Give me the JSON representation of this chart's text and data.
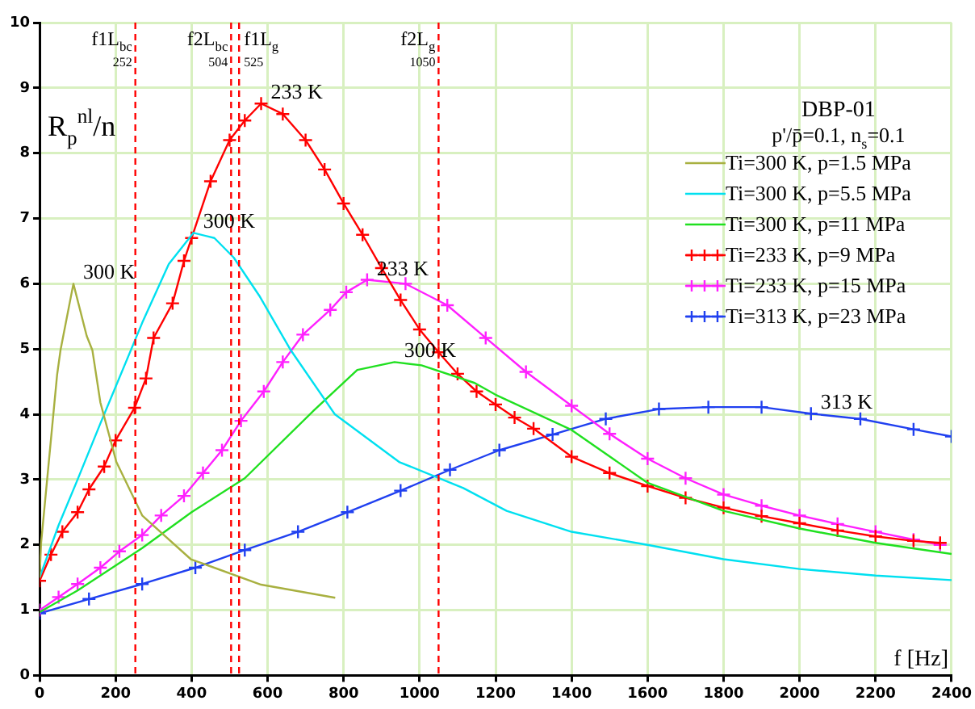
{
  "chart_data": {
    "type": "line",
    "xlabel": "f [Hz]",
    "ylabel": "R$_{p}$$^{nl}$/n",
    "legend_title": "DBP-01",
    "subtitle": "p'/p̄=0.1, n$_{s}$=0.1",
    "xlim": [
      0,
      2400
    ],
    "xticks": [
      0,
      200,
      400,
      600,
      800,
      1000,
      1200,
      1400,
      1600,
      1800,
      2000,
      2200,
      2400
    ],
    "ylim": [
      0,
      10
    ],
    "yticks": [
      0,
      1,
      2,
      3,
      4,
      5,
      6,
      7,
      8,
      9,
      10
    ],
    "grid": true,
    "legend": "top right",
    "line_style": "solid",
    "series": [
      {
        "name": "Ti=300 K, p=1.5 MPa",
        "color": "#a8b040",
        "marker": "none",
        "x": [
          0,
          4,
          46,
          55,
          89,
          124,
          139,
          160,
          202,
          270,
          398,
          583,
          778
        ],
        "values": [
          1.5,
          2.03,
          4.6,
          4.98,
          6.0,
          5.2,
          4.98,
          4.18,
          3.27,
          2.45,
          1.78,
          1.39,
          1.19
        ]
      },
      {
        "name": "Ti=300 K, p=5.5 MPa",
        "color": "#00e0f0",
        "marker": "none",
        "x": [
          0,
          50,
          100,
          160,
          270,
          340,
          405,
          460,
          511,
          580,
          659,
          777,
          946,
          1115,
          1229,
          1400,
          1600,
          1800,
          2000,
          2200,
          2400
        ],
        "values": [
          1.5,
          2.3,
          3.0,
          3.86,
          5.4,
          6.3,
          6.78,
          6.7,
          6.4,
          5.8,
          5.0,
          4.0,
          3.27,
          2.87,
          2.52,
          2.2,
          2.0,
          1.78,
          1.63,
          1.53,
          1.46
        ]
      },
      {
        "name": "Ti=300 K, p=11 MPa",
        "color": "#20e020",
        "marker": "none",
        "x": [
          0,
          100,
          270,
          400,
          540,
          722,
          836,
          934,
          1005,
          1145,
          1200,
          1400,
          1600,
          1800,
          2000,
          2200,
          2400
        ],
        "values": [
          0.97,
          1.3,
          1.95,
          2.5,
          3.02,
          4.06,
          4.68,
          4.8,
          4.75,
          4.48,
          4.3,
          3.76,
          2.95,
          2.52,
          2.25,
          2.03,
          1.86
        ]
      },
      {
        "name": "Ti=233 K, p=9 MPa",
        "color": "#ff0000",
        "marker": "cross",
        "x": [
          0,
          30,
          60,
          100,
          130,
          170,
          200,
          250,
          280,
          300,
          350,
          380,
          400,
          450,
          500,
          540,
          583,
          640,
          700,
          750,
          800,
          850,
          900,
          950,
          1000,
          1050,
          1100,
          1150,
          1200,
          1250,
          1300,
          1400,
          1500,
          1600,
          1700,
          1800,
          1900,
          2000,
          2100,
          2200,
          2300,
          2370
        ],
        "values": [
          1.45,
          1.85,
          2.2,
          2.5,
          2.85,
          3.2,
          3.6,
          4.1,
          4.55,
          5.17,
          5.7,
          6.35,
          6.7,
          7.57,
          8.2,
          8.5,
          8.76,
          8.6,
          8.2,
          7.75,
          7.23,
          6.75,
          6.24,
          5.75,
          5.3,
          4.95,
          4.62,
          4.35,
          4.15,
          3.95,
          3.78,
          3.35,
          3.1,
          2.9,
          2.72,
          2.57,
          2.44,
          2.33,
          2.22,
          2.13,
          2.06,
          2.03
        ]
      },
      {
        "name": "Ti=233 K, p=15 MPa",
        "color": "#ff20ff",
        "marker": "cross",
        "x": [
          0,
          50,
          100,
          160,
          210,
          270,
          320,
          380,
          430,
          480,
          530,
          590,
          640,
          693,
          765,
          807,
          862,
          963,
          1073,
          1174,
          1280,
          1400,
          1500,
          1600,
          1700,
          1800,
          1900,
          2000,
          2100,
          2200,
          2300,
          2370
        ],
        "values": [
          1.0,
          1.2,
          1.4,
          1.65,
          1.9,
          2.15,
          2.45,
          2.75,
          3.1,
          3.45,
          3.9,
          4.35,
          4.8,
          5.22,
          5.6,
          5.87,
          6.06,
          6.0,
          5.67,
          5.17,
          4.65,
          4.13,
          3.7,
          3.32,
          3.02,
          2.77,
          2.6,
          2.45,
          2.32,
          2.2,
          2.08,
          2.0
        ]
      },
      {
        "name": "Ti=313 K, p=23 MPa",
        "color": "#2040f0",
        "marker": "cross",
        "x": [
          0,
          130,
          270,
          410,
          540,
          680,
          810,
          950,
          1080,
          1210,
          1350,
          1490,
          1630,
          1760,
          1900,
          2030,
          2160,
          2300,
          2400
        ],
        "values": [
          0.95,
          1.17,
          1.4,
          1.65,
          1.92,
          2.2,
          2.5,
          2.83,
          3.15,
          3.45,
          3.69,
          3.93,
          4.08,
          4.11,
          4.11,
          4.01,
          3.93,
          3.77,
          3.66
        ]
      }
    ],
    "annotations": [
      {
        "text": "300 K",
        "x": 89,
        "y": 6.0
      },
      {
        "text": "300 K",
        "x": 405,
        "y": 6.78
      },
      {
        "text": "233 K",
        "x": 583,
        "y": 8.76
      },
      {
        "text": "233 K",
        "x": 862,
        "y": 6.06
      },
      {
        "text": "300 K",
        "x": 934,
        "y": 4.8
      },
      {
        "text": "313 K",
        "x": 2030,
        "y": 4.01
      }
    ],
    "ref_lines": [
      {
        "axis": "x",
        "value": 252,
        "label": "f1L$_{bc}$\n252",
        "color": "#ff0000",
        "line_style": "dashed"
      },
      {
        "axis": "x",
        "value": 504,
        "label": "f2L$_{bc}$\n504",
        "color": "#ff0000",
        "line_style": "dashed"
      },
      {
        "axis": "x",
        "value": 525,
        "label": "f1L$_{g}$\n525",
        "color": "#ff0000",
        "line_style": "dashed"
      },
      {
        "axis": "x",
        "value": 1050,
        "label": "f2L$_{g}$\n1050",
        "color": "#ff0000",
        "line_style": "dashed"
      }
    ]
  }
}
